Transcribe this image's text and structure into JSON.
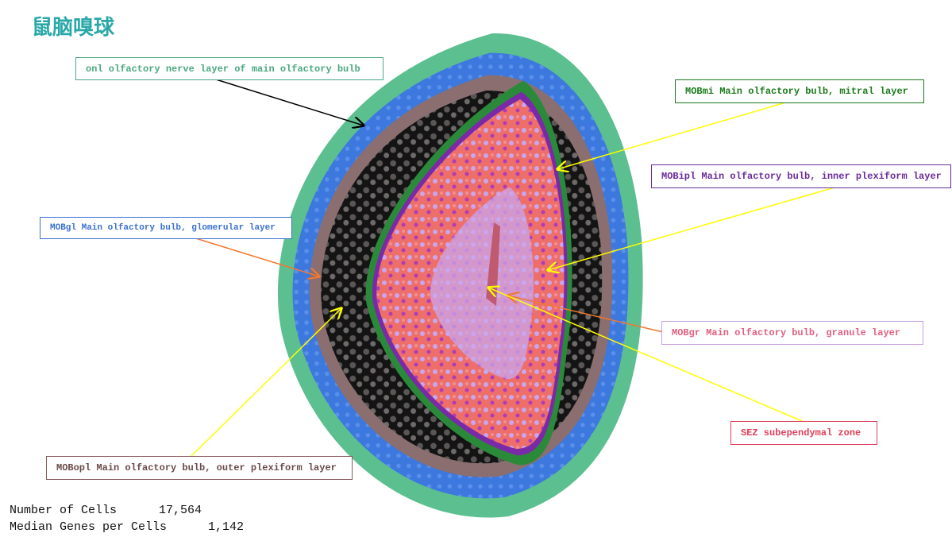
{
  "title": "鼠脑嗅球",
  "labels": [
    {
      "text": "onl olfactory nerve layer of main olfactory bulb"
    },
    {
      "text": "MOBmi Main olfactory bulb, mitral layer"
    },
    {
      "text": "MOBipl Main olfactory bulb, inner plexiform layer"
    },
    {
      "text": "MOBgl Main olfactory bulb, glomerular layer"
    },
    {
      "text": "MOBgr Main olfactory bulb, granule layer"
    },
    {
      "text": "SEZ subependymal zone"
    },
    {
      "text": "MOBopl Main olfactory bulb, outer plexiform layer"
    }
  ],
  "stats": [
    {
      "label": "Number of Cells",
      "value": "17,564"
    },
    {
      "label": "Median Genes per Cells",
      "value": "1,142"
    }
  ]
}
